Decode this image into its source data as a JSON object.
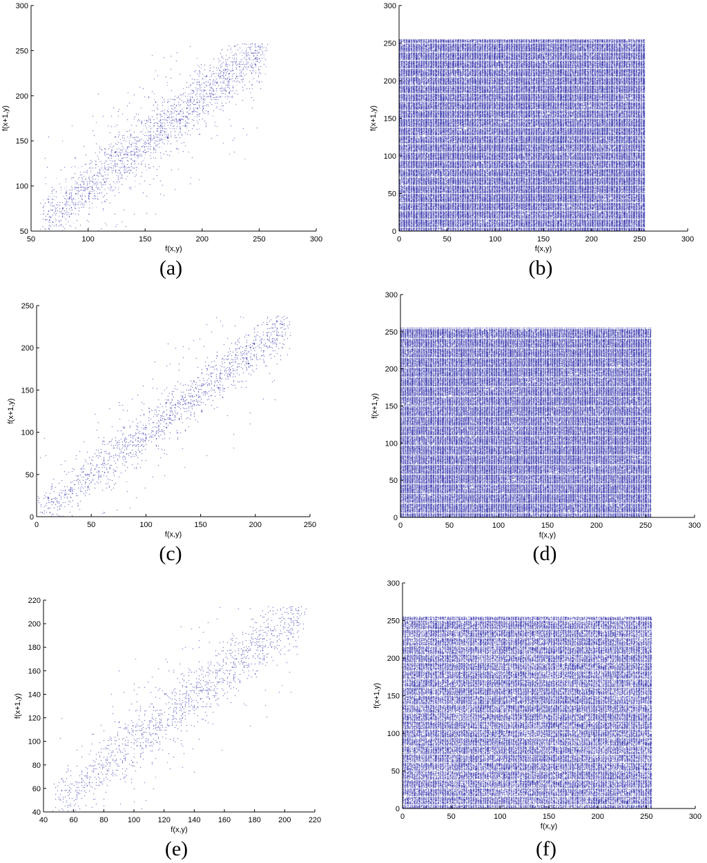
{
  "colors": {
    "point": "#2a2aa8",
    "axes": "#000000",
    "background": "#ffffff"
  },
  "chart_data": [
    {
      "id": "a",
      "type": "scatter",
      "panel_label": "(a)",
      "xlabel": "f(x,y)",
      "ylabel": "f(x+1,y)",
      "xlim": [
        50,
        300
      ],
      "ylim": [
        50,
        300
      ],
      "xticks": [
        "50",
        "100",
        "150",
        "200",
        "250",
        "300"
      ],
      "yticks": [
        "50",
        "100",
        "150",
        "200",
        "250",
        "300"
      ],
      "distribution": {
        "kind": "correlated",
        "x_range": [
          60,
          255
        ],
        "y_range": [
          60,
          255
        ],
        "spread": 14,
        "outlier_spread": 40,
        "outlier_fraction": 0.18,
        "density": 0.35
      }
    },
    {
      "id": "b",
      "type": "scatter",
      "panel_label": "(b)",
      "xlabel": "f(x,y)",
      "ylabel": "f(x+1,y)",
      "xlim": [
        0,
        300
      ],
      "ylim": [
        0,
        300
      ],
      "xticks": [
        "0",
        "50",
        "100",
        "150",
        "200",
        "250",
        "300"
      ],
      "yticks": [
        "0",
        "50",
        "100",
        "150",
        "200",
        "250",
        "300"
      ],
      "distribution": {
        "kind": "uniform",
        "x_range": [
          0,
          255
        ],
        "y_range": [
          0,
          255
        ],
        "density": 0.9
      }
    },
    {
      "id": "c",
      "type": "scatter",
      "panel_label": "(c)",
      "xlabel": "f(x,y)",
      "ylabel": "f(x+1,y)",
      "xlim": [
        0,
        250
      ],
      "ylim": [
        0,
        250
      ],
      "xticks": [
        "0",
        "50",
        "100",
        "150",
        "200",
        "250"
      ],
      "yticks": [
        "0",
        "50",
        "100",
        "150",
        "200",
        "250"
      ],
      "distribution": {
        "kind": "correlated",
        "x_range": [
          2,
          230
        ],
        "y_range": [
          2,
          235
        ],
        "spread": 12,
        "outlier_spread": 38,
        "outlier_fraction": 0.18,
        "density": 0.35
      }
    },
    {
      "id": "d",
      "type": "scatter",
      "panel_label": "(d)",
      "xlabel": "f(x,y)",
      "ylabel": "f(x+1,y)",
      "xlim": [
        0,
        300
      ],
      "ylim": [
        0,
        300
      ],
      "xticks": [
        "0",
        "50",
        "100",
        "150",
        "200",
        "250",
        "300"
      ],
      "yticks": [
        "0",
        "50",
        "100",
        "150",
        "200",
        "250",
        "300"
      ],
      "distribution": {
        "kind": "uniform",
        "x_range": [
          0,
          255
        ],
        "y_range": [
          0,
          255
        ],
        "density": 0.9
      }
    },
    {
      "id": "e",
      "type": "scatter",
      "panel_label": "(e)",
      "xlabel": "f(x,y)",
      "ylabel": "f(x+1,y)",
      "xlim": [
        40,
        220
      ],
      "ylim": [
        40,
        220
      ],
      "xticks": [
        "40",
        "60",
        "80",
        "100",
        "120",
        "140",
        "160",
        "180",
        "200",
        "220"
      ],
      "yticks": [
        "40",
        "60",
        "80",
        "100",
        "120",
        "140",
        "160",
        "180",
        "200",
        "220"
      ],
      "distribution": {
        "kind": "correlated",
        "x_range": [
          48,
          212
        ],
        "y_range": [
          48,
          212
        ],
        "spread": 11,
        "outlier_spread": 30,
        "outlier_fraction": 0.18,
        "density": 0.3
      }
    },
    {
      "id": "f",
      "type": "scatter",
      "panel_label": "(f)",
      "xlabel": "f(x,y)",
      "ylabel": "f(x+1,y)",
      "xlim": [
        0,
        300
      ],
      "ylim": [
        0,
        300
      ],
      "xticks": [
        "0",
        "50",
        "100",
        "150",
        "200",
        "250",
        "300"
      ],
      "yticks": [
        "0",
        "50",
        "100",
        "150",
        "200",
        "250",
        "300"
      ],
      "distribution": {
        "kind": "uniform",
        "x_range": [
          0,
          255
        ],
        "y_range": [
          0,
          255
        ],
        "density": 0.75
      }
    }
  ]
}
